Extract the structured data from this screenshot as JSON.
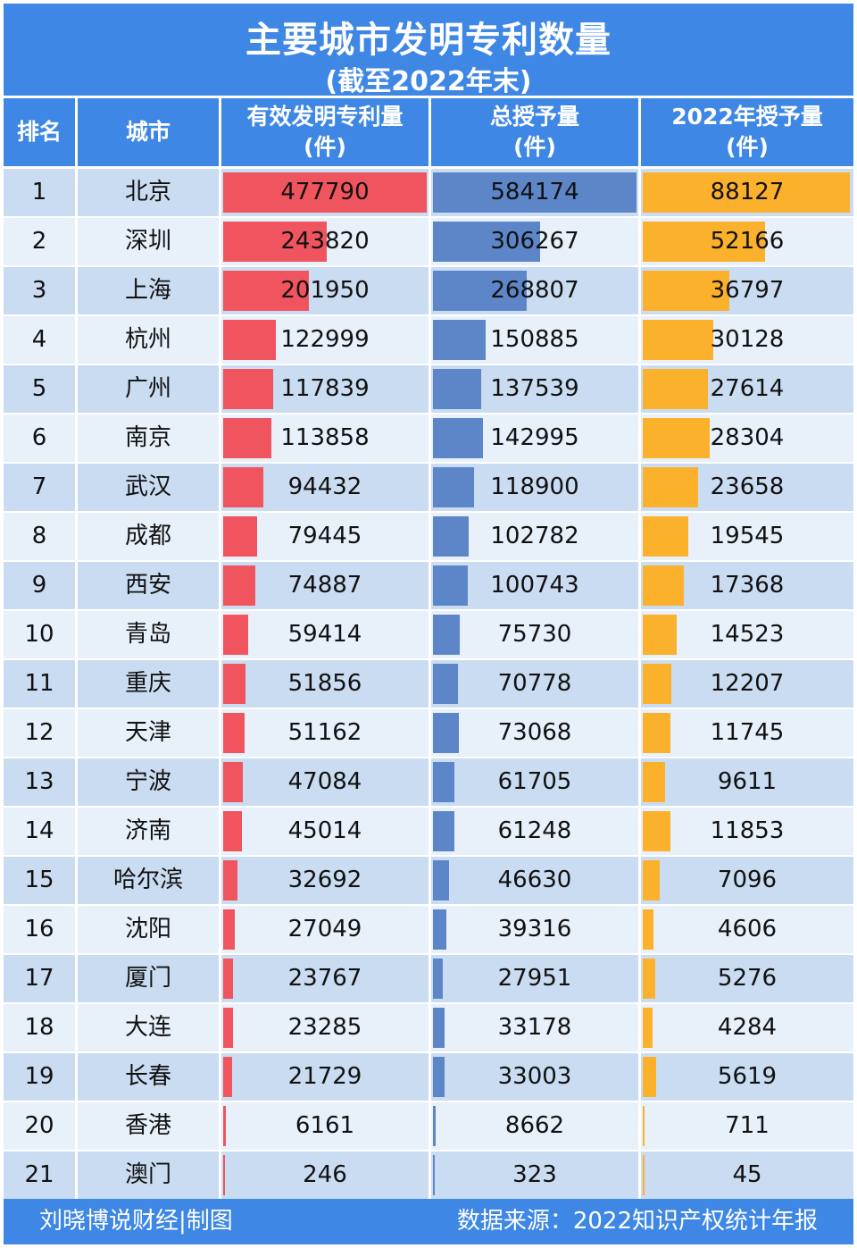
{
  "header": {
    "title": "主要城市发明专利数量",
    "subtitle": "(截至2022年末)",
    "columns": [
      {
        "line1": "排名",
        "line2": ""
      },
      {
        "line1": "城市",
        "line2": ""
      },
      {
        "line1": "有效发明专利量",
        "line2": "(件)"
      },
      {
        "line1": "总授予量",
        "line2": "(件)"
      },
      {
        "line1": "2022年授予量",
        "line2": "(件)"
      }
    ]
  },
  "footer": {
    "left": "刘晓博说财经|制图",
    "right": "数据来源：2022知识产权统计年报"
  },
  "colors": {
    "header_blue": "#3e87e5",
    "row_dark": "#c9dcf1",
    "row_light": "#e8f0fa",
    "bar_valid": "#f0545f",
    "bar_total": "#5d86c9",
    "bar_2022": "#fbb12b"
  },
  "chart_data": {
    "type": "table",
    "title": "主要城市发明专利数量",
    "subtitle": "(截至2022年末)",
    "columns": [
      "排名",
      "城市",
      "有效发明专利量(件)",
      "总授予量(件)",
      "2022年授予量(件)"
    ],
    "rows": [
      {
        "rank": "1",
        "city": "北京",
        "valid": 477790,
        "total": 584174,
        "y2022": 88127
      },
      {
        "rank": "2",
        "city": "深圳",
        "valid": 243820,
        "total": 306267,
        "y2022": 52166
      },
      {
        "rank": "3",
        "city": "上海",
        "valid": 201950,
        "total": 268807,
        "y2022": 36797
      },
      {
        "rank": "4",
        "city": "杭州",
        "valid": 122999,
        "total": 150885,
        "y2022": 30128
      },
      {
        "rank": "5",
        "city": "广州",
        "valid": 117839,
        "total": 137539,
        "y2022": 27614
      },
      {
        "rank": "6",
        "city": "南京",
        "valid": 113858,
        "total": 142995,
        "y2022": 28304
      },
      {
        "rank": "7",
        "city": "武汉",
        "valid": 94432,
        "total": 118900,
        "y2022": 23658
      },
      {
        "rank": "8",
        "city": "成都",
        "valid": 79445,
        "total": 102782,
        "y2022": 19545
      },
      {
        "rank": "9",
        "city": "西安",
        "valid": 74887,
        "total": 100743,
        "y2022": 17368
      },
      {
        "rank": "10",
        "city": "青岛",
        "valid": 59414,
        "total": 75730,
        "y2022": 14523
      },
      {
        "rank": "11",
        "city": "重庆",
        "valid": 51856,
        "total": 70778,
        "y2022": 12207
      },
      {
        "rank": "12",
        "city": "天津",
        "valid": 51162,
        "total": 73068,
        "y2022": 11745
      },
      {
        "rank": "13",
        "city": "宁波",
        "valid": 47084,
        "total": 61705,
        "y2022": 9611
      },
      {
        "rank": "14",
        "city": "济南",
        "valid": 45014,
        "total": 61248,
        "y2022": 11853
      },
      {
        "rank": "15",
        "city": "哈尔滨",
        "valid": 32692,
        "total": 46630,
        "y2022": 7096
      },
      {
        "rank": "16",
        "city": "沈阳",
        "valid": 27049,
        "total": 39316,
        "y2022": 4606
      },
      {
        "rank": "17",
        "city": "厦门",
        "valid": 23767,
        "total": 27951,
        "y2022": 5276
      },
      {
        "rank": "18",
        "city": "大连",
        "valid": 23285,
        "total": 33178,
        "y2022": 4284
      },
      {
        "rank": "19",
        "city": "长春",
        "valid": 21729,
        "total": 33003,
        "y2022": 5619
      },
      {
        "rank": "20",
        "city": "香港",
        "valid": 6161,
        "total": 8662,
        "y2022": 711
      },
      {
        "rank": "21",
        "city": "澳门",
        "valid": 246,
        "total": 323,
        "y2022": 45
      }
    ]
  }
}
